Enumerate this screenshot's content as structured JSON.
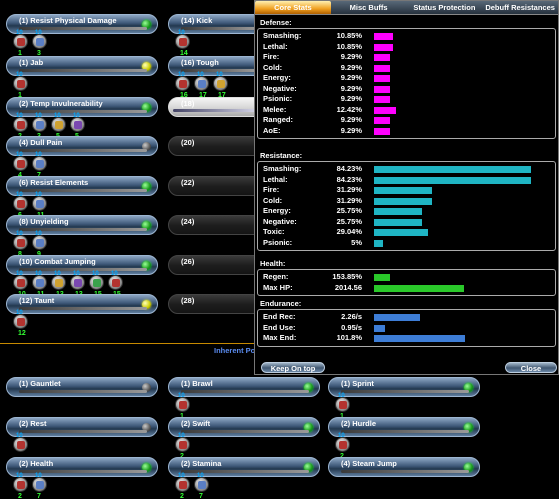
{
  "powers": [
    {
      "label": "(1) Resist Physical Damage",
      "dot": "green",
      "slots": [
        {
          "n": "1",
          "lv": "10"
        },
        {
          "n": "3",
          "lv": "10"
        }
      ]
    },
    {
      "label": "(1) Jab",
      "dot": "yellow",
      "slots": [
        {
          "n": "1",
          "lv": "10"
        }
      ]
    },
    {
      "label": "(2) Temp Invulnerability",
      "dot": "green",
      "slots": [
        {
          "n": "2",
          "lv": "10"
        },
        {
          "n": "3",
          "lv": "10"
        },
        {
          "n": "5",
          "lv": "10"
        },
        {
          "n": "5",
          "lv": "10"
        }
      ]
    },
    {
      "label": "(4) Dull Pain",
      "dot": "gray",
      "slots": [
        {
          "n": "4",
          "lv": "10"
        },
        {
          "n": "7",
          "lv": "10"
        }
      ]
    },
    {
      "label": "(6) Resist Elements",
      "dot": "green",
      "slots": [
        {
          "n": "6",
          "lv": "10"
        },
        {
          "n": "11",
          "lv": "10"
        }
      ]
    },
    {
      "label": "(8) Unyielding",
      "dot": "green",
      "slots": [
        {
          "n": "8",
          "lv": "10"
        },
        {
          "n": "9",
          "lv": "10"
        }
      ]
    },
    {
      "label": "(10) Combat Jumping",
      "dot": "green",
      "slots": [
        {
          "n": "10",
          "lv": "10"
        },
        {
          "n": "11",
          "lv": "10"
        },
        {
          "n": "13",
          "lv": "10"
        },
        {
          "n": "13",
          "lv": "10"
        },
        {
          "n": "15",
          "lv": "10"
        },
        {
          "n": "15",
          "lv": "10"
        }
      ]
    },
    {
      "label": "(12) Taunt",
      "dot": "yellow",
      "slots": [
        {
          "n": "12",
          "lv": "10"
        }
      ]
    }
  ],
  "powers2": [
    {
      "label": "(14) Kick",
      "slots": [
        {
          "n": "14",
          "lv": "10"
        }
      ]
    },
    {
      "label": "(16) Tough",
      "slots": [
        {
          "n": "16",
          "lv": "10"
        },
        {
          "n": "17",
          "lv": "10"
        },
        {
          "n": "17",
          "lv": "10"
        }
      ]
    },
    {
      "label": "(18)"
    },
    {
      "label": "(20)"
    },
    {
      "label": "(22)"
    },
    {
      "label": "(24)"
    },
    {
      "label": "(26)"
    },
    {
      "label": "(28)"
    }
  ],
  "inherent_label": "Inherent Powers",
  "inherent": [
    {
      "label": "(1) Gauntlet",
      "dot": "gray",
      "slots": []
    },
    {
      "label": "(1) Brawl",
      "dot": "green",
      "slots": [
        {
          "n": "1",
          "lv": "10"
        }
      ]
    },
    {
      "label": "(1) Sprint",
      "dot": "green",
      "slots": [
        {
          "n": "1",
          "lv": "10"
        }
      ]
    },
    {
      "label": "(2) Rest",
      "dot": "gray",
      "slots": [
        {
          "n": "",
          "lv": "10"
        }
      ]
    },
    {
      "label": "(2) Swift",
      "dot": "green",
      "slots": [
        {
          "n": "2",
          "lv": "10"
        }
      ]
    },
    {
      "label": "(2) Hurdle",
      "dot": "green",
      "slots": [
        {
          "n": "2",
          "lv": "10"
        }
      ]
    },
    {
      "label": "(2) Health",
      "dot": "green",
      "slots": [
        {
          "n": "2",
          "lv": "10"
        },
        {
          "n": "7",
          "lv": "10"
        }
      ]
    },
    {
      "label": "(2) Stamina",
      "dot": "green",
      "slots": [
        {
          "n": "2",
          "lv": "10"
        },
        {
          "n": "7",
          "lv": "10"
        }
      ]
    },
    {
      "label": "(4) Steam Jump",
      "dot": "green",
      "slots": []
    }
  ],
  "stats": {
    "tabs": [
      "Core Stats",
      "Misc Buffs",
      "Status Protection",
      "Debuff Resistances"
    ],
    "defense_title": "Defense:",
    "defense": [
      {
        "label": "Smashing:",
        "value": "10.85%",
        "pct": 10.85
      },
      {
        "label": "Lethal:",
        "value": "10.85%",
        "pct": 10.85
      },
      {
        "label": "Fire:",
        "value": "9.29%",
        "pct": 9.29
      },
      {
        "label": "Cold:",
        "value": "9.29%",
        "pct": 9.29
      },
      {
        "label": "Energy:",
        "value": "9.29%",
        "pct": 9.29
      },
      {
        "label": "Negative:",
        "value": "9.29%",
        "pct": 9.29
      },
      {
        "label": "Psionic:",
        "value": "9.29%",
        "pct": 9.29
      },
      {
        "label": "Melee:",
        "value": "12.42%",
        "pct": 12.42
      },
      {
        "label": "Ranged:",
        "value": "9.29%",
        "pct": 9.29
      },
      {
        "label": "AoE:",
        "value": "9.29%",
        "pct": 9.29
      }
    ],
    "resistance_title": "Resistance:",
    "resistance": [
      {
        "label": "Smashing:",
        "value": "84.23%",
        "pct": 84.23
      },
      {
        "label": "Lethal:",
        "value": "84.23%",
        "pct": 84.23
      },
      {
        "label": "Fire:",
        "value": "31.29%",
        "pct": 31.29
      },
      {
        "label": "Cold:",
        "value": "31.29%",
        "pct": 31.29
      },
      {
        "label": "Energy:",
        "value": "25.75%",
        "pct": 25.75
      },
      {
        "label": "Negative:",
        "value": "25.75%",
        "pct": 25.75
      },
      {
        "label": "Toxic:",
        "value": "29.04%",
        "pct": 29.04
      },
      {
        "label": "Psionic:",
        "value": "5%",
        "pct": 5
      }
    ],
    "health_title": "Health:",
    "health": [
      {
        "label": "Regen:",
        "value": "153.85%",
        "pct": 11
      },
      {
        "label": "Max HP:",
        "value": "2014.56",
        "pct": 62
      }
    ],
    "endurance_title": "Endurance:",
    "endurance": [
      {
        "label": "End Rec:",
        "value": "2.26/s",
        "pct": 25
      },
      {
        "label": "End Use:",
        "value": "0.95/s",
        "pct": 6
      },
      {
        "label": "Max End:",
        "value": "101.8%",
        "pct": 50
      }
    ],
    "keep_on_top": "Keep On top",
    "close": "Close"
  }
}
